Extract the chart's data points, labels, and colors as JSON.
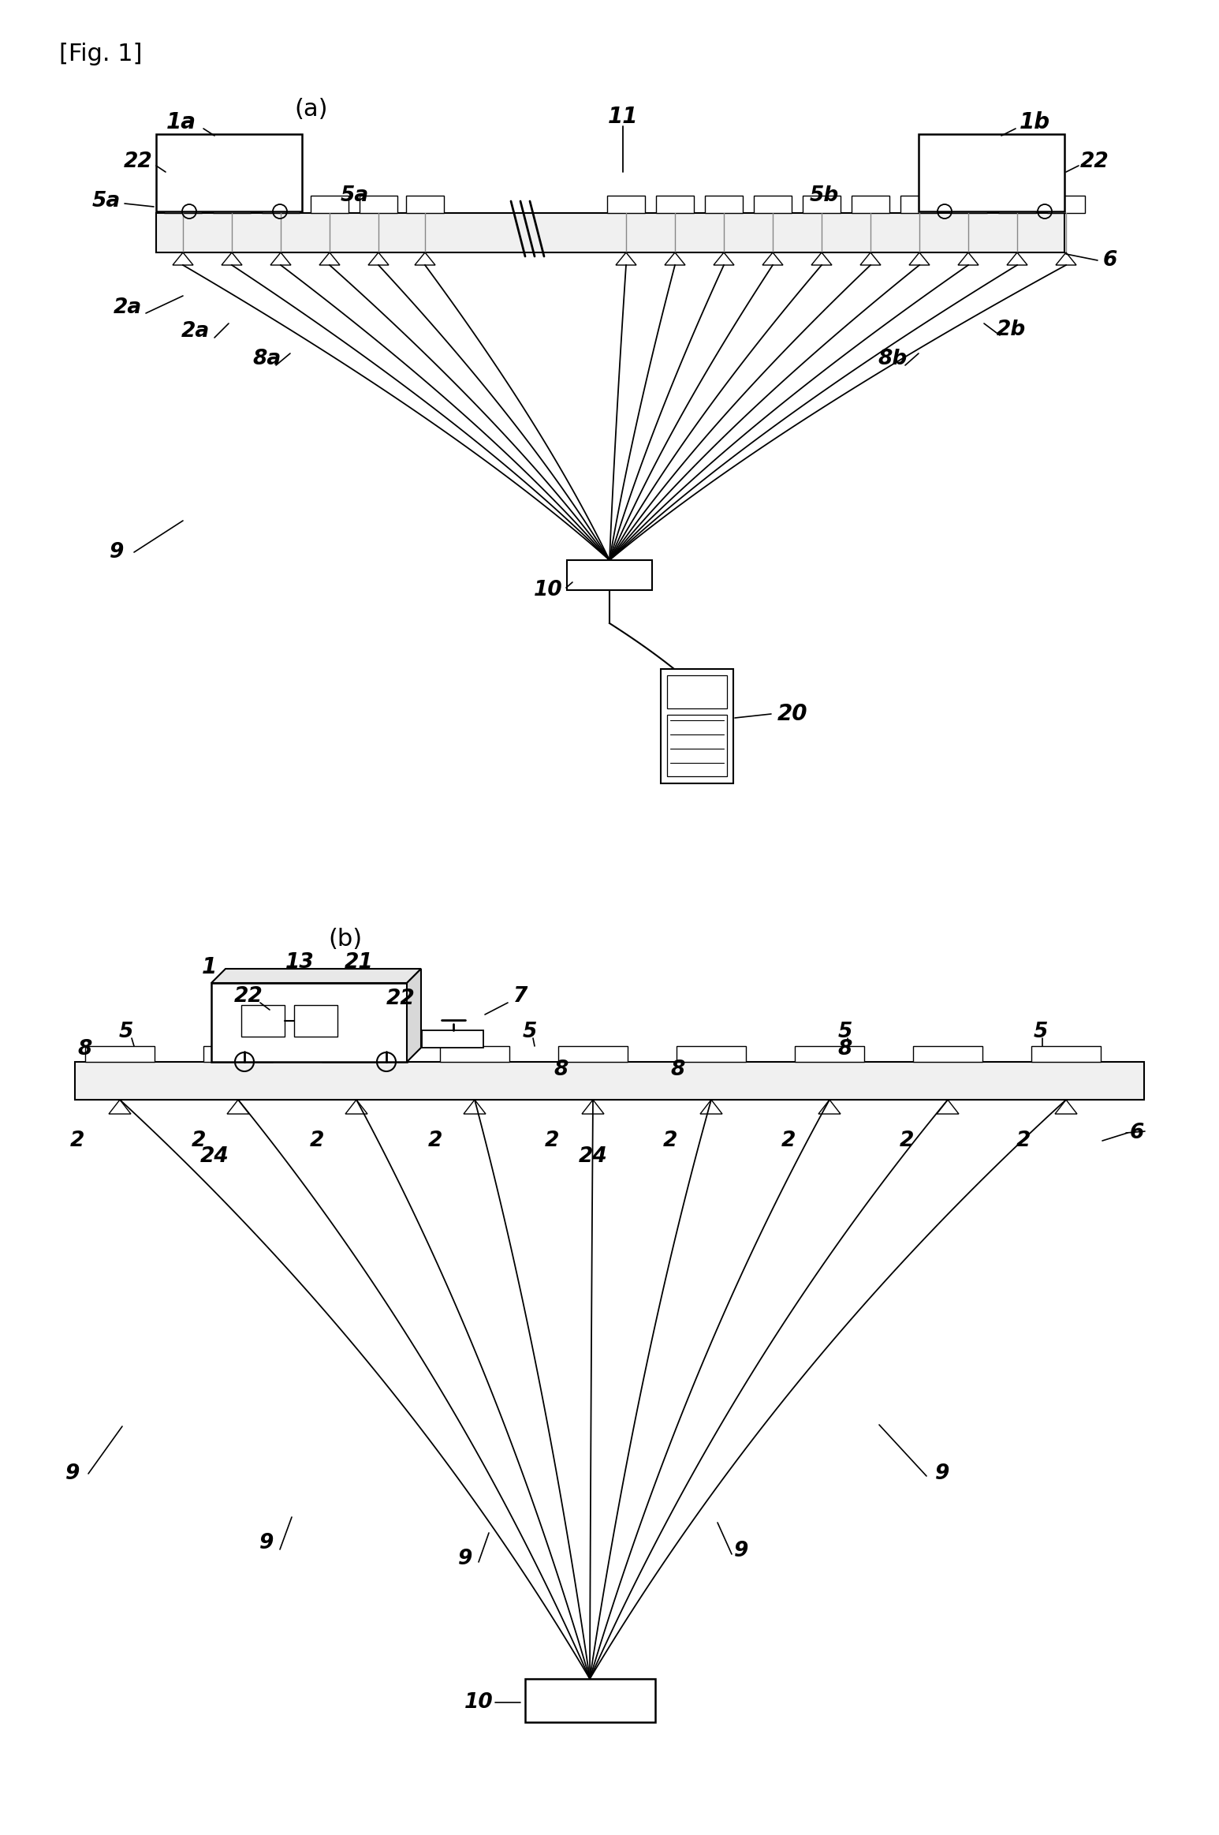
{
  "fig_label": "[Fig. 1]",
  "bg_color": "#ffffff",
  "line_color": "#000000",
  "panel_a_label": "(a)",
  "panel_b_label": "(b)"
}
